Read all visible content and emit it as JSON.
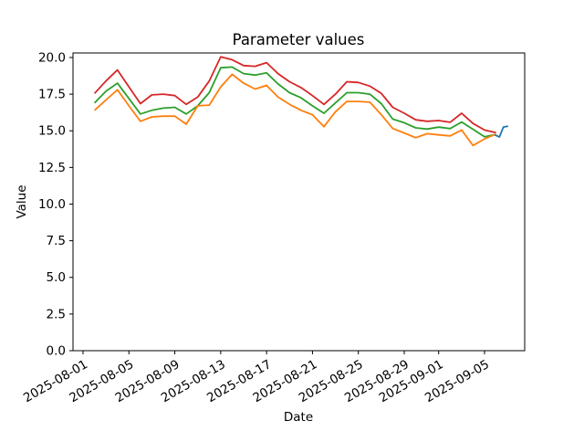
{
  "chart_data": {
    "type": "line",
    "title": "Parameter values",
    "xlabel": "Date",
    "ylabel": "Value",
    "background_color": "#ffffff",
    "spine_color": "#000000",
    "grid": false,
    "legend": "none",
    "ylim": [
      0,
      20.31
    ],
    "xlim_days_since_2025-08-01": [
      -0.875,
      38.5
    ],
    "yticks": [
      {
        "value": 0.0,
        "label": "0.0"
      },
      {
        "value": 2.5,
        "label": "2.5"
      },
      {
        "value": 5.0,
        "label": "5.0"
      },
      {
        "value": 7.5,
        "label": "7.5"
      },
      {
        "value": 10.0,
        "label": "10.0"
      },
      {
        "value": 12.5,
        "label": "12.5"
      },
      {
        "value": 15.0,
        "label": "15.0"
      },
      {
        "value": 17.5,
        "label": "17.5"
      },
      {
        "value": 20.0,
        "label": "20.0"
      }
    ],
    "xticks": [
      {
        "day": 0,
        "label": "2025-08-01"
      },
      {
        "day": 4,
        "label": "2025-08-05"
      },
      {
        "day": 8,
        "label": "2025-08-09"
      },
      {
        "day": 12,
        "label": "2025-08-13"
      },
      {
        "day": 16,
        "label": "2025-08-17"
      },
      {
        "day": 20,
        "label": "2025-08-21"
      },
      {
        "day": 24,
        "label": "2025-08-25"
      },
      {
        "day": 28,
        "label": "2025-08-29"
      },
      {
        "day": 31,
        "label": "2025-09-01"
      },
      {
        "day": 35,
        "label": "2025-09-05"
      }
    ],
    "x_tick_rotation_deg": 30,
    "series": [
      {
        "name": "red-line",
        "color": "#d62728",
        "start_day": 1,
        "start_date": "2025-08-02",
        "step_days": 1,
        "values": [
          17.55,
          18.4,
          19.15,
          18.0,
          16.85,
          17.45,
          17.5,
          17.4,
          16.8,
          17.3,
          18.4,
          20.05,
          19.85,
          19.45,
          19.4,
          19.65,
          18.9,
          18.35,
          17.95,
          17.4,
          16.8,
          17.5,
          18.35,
          18.3,
          18.05,
          17.55,
          16.6,
          16.2,
          15.75,
          15.65,
          15.7,
          15.58,
          16.2,
          15.5,
          15.05,
          14.88
        ]
      },
      {
        "name": "green-line",
        "color": "#2ca02c",
        "start_day": 1,
        "start_date": "2025-08-02",
        "step_days": 1,
        "values": [
          16.9,
          17.7,
          18.25,
          17.2,
          16.15,
          16.4,
          16.55,
          16.6,
          16.15,
          16.7,
          17.6,
          19.3,
          19.35,
          18.9,
          18.8,
          18.95,
          18.2,
          17.6,
          17.25,
          16.7,
          16.2,
          16.9,
          17.6,
          17.6,
          17.5,
          16.85,
          15.8,
          15.55,
          15.2,
          15.12,
          15.25,
          15.15,
          15.6,
          15.1,
          14.6,
          14.75
        ]
      },
      {
        "name": "orange-line",
        "color": "#ff7f0e",
        "start_day": 1,
        "start_date": "2025-08-02",
        "step_days": 1,
        "values": [
          16.4,
          17.1,
          17.8,
          16.7,
          15.65,
          15.95,
          16.0,
          16.0,
          15.45,
          16.7,
          16.75,
          18.0,
          18.85,
          18.25,
          17.85,
          18.1,
          17.3,
          16.8,
          16.4,
          16.1,
          15.28,
          16.3,
          17.0,
          17.0,
          16.95,
          16.1,
          15.16,
          14.85,
          14.53,
          14.8,
          14.72,
          14.65,
          15.05,
          14.0,
          14.45,
          14.78
        ]
      },
      {
        "name": "blue-line",
        "color": "#1f77b4",
        "points_day_value": [
          [
            35.9,
            14.72
          ],
          [
            36.3,
            14.58
          ],
          [
            36.65,
            15.26
          ],
          [
            37.05,
            15.32
          ]
        ]
      }
    ]
  }
}
